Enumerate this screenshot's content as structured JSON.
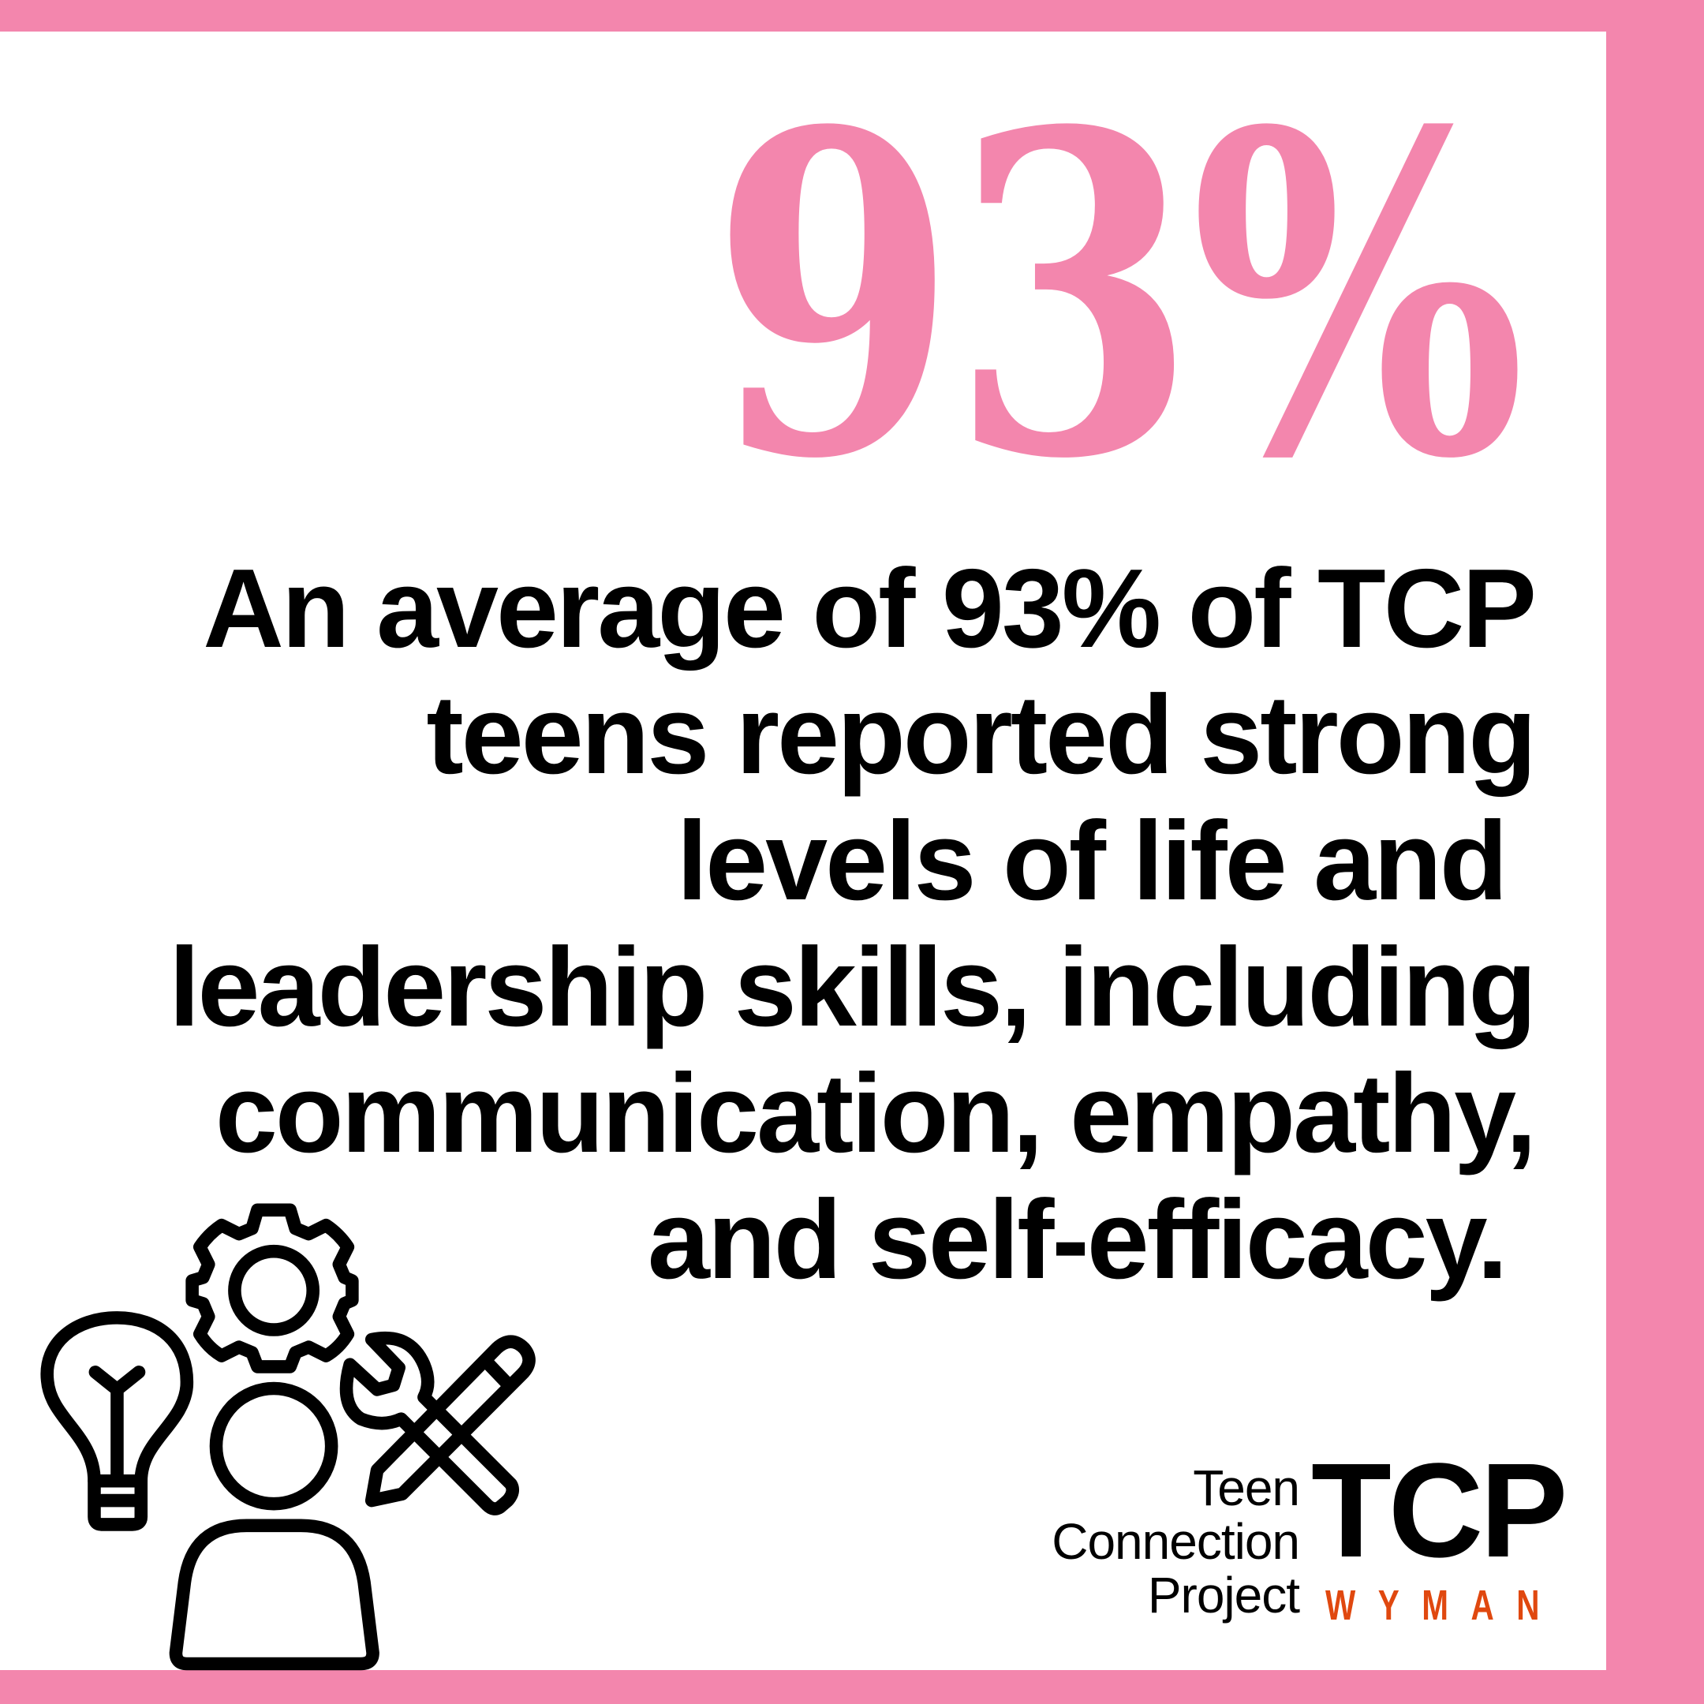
{
  "colors": {
    "accent_pink": "#F386AD",
    "wyman_orange": "#E0480F",
    "text": "#000000"
  },
  "headline": "93%",
  "body_lines": [
    "An average of 93% of TCP",
    "teens reported strong",
    "levels of life and ",
    "leadership skills, including",
    "communication, empathy,",
    "and self-efficacy. "
  ],
  "illustration": {
    "icons": [
      "lightbulb-icon",
      "gear-icon",
      "person-icon",
      "wrench-icon",
      "pencil-icon"
    ]
  },
  "logo": {
    "words": [
      "Teen",
      "Connection",
      "Project"
    ],
    "acronym": "TCP",
    "org": "WYMAN"
  }
}
